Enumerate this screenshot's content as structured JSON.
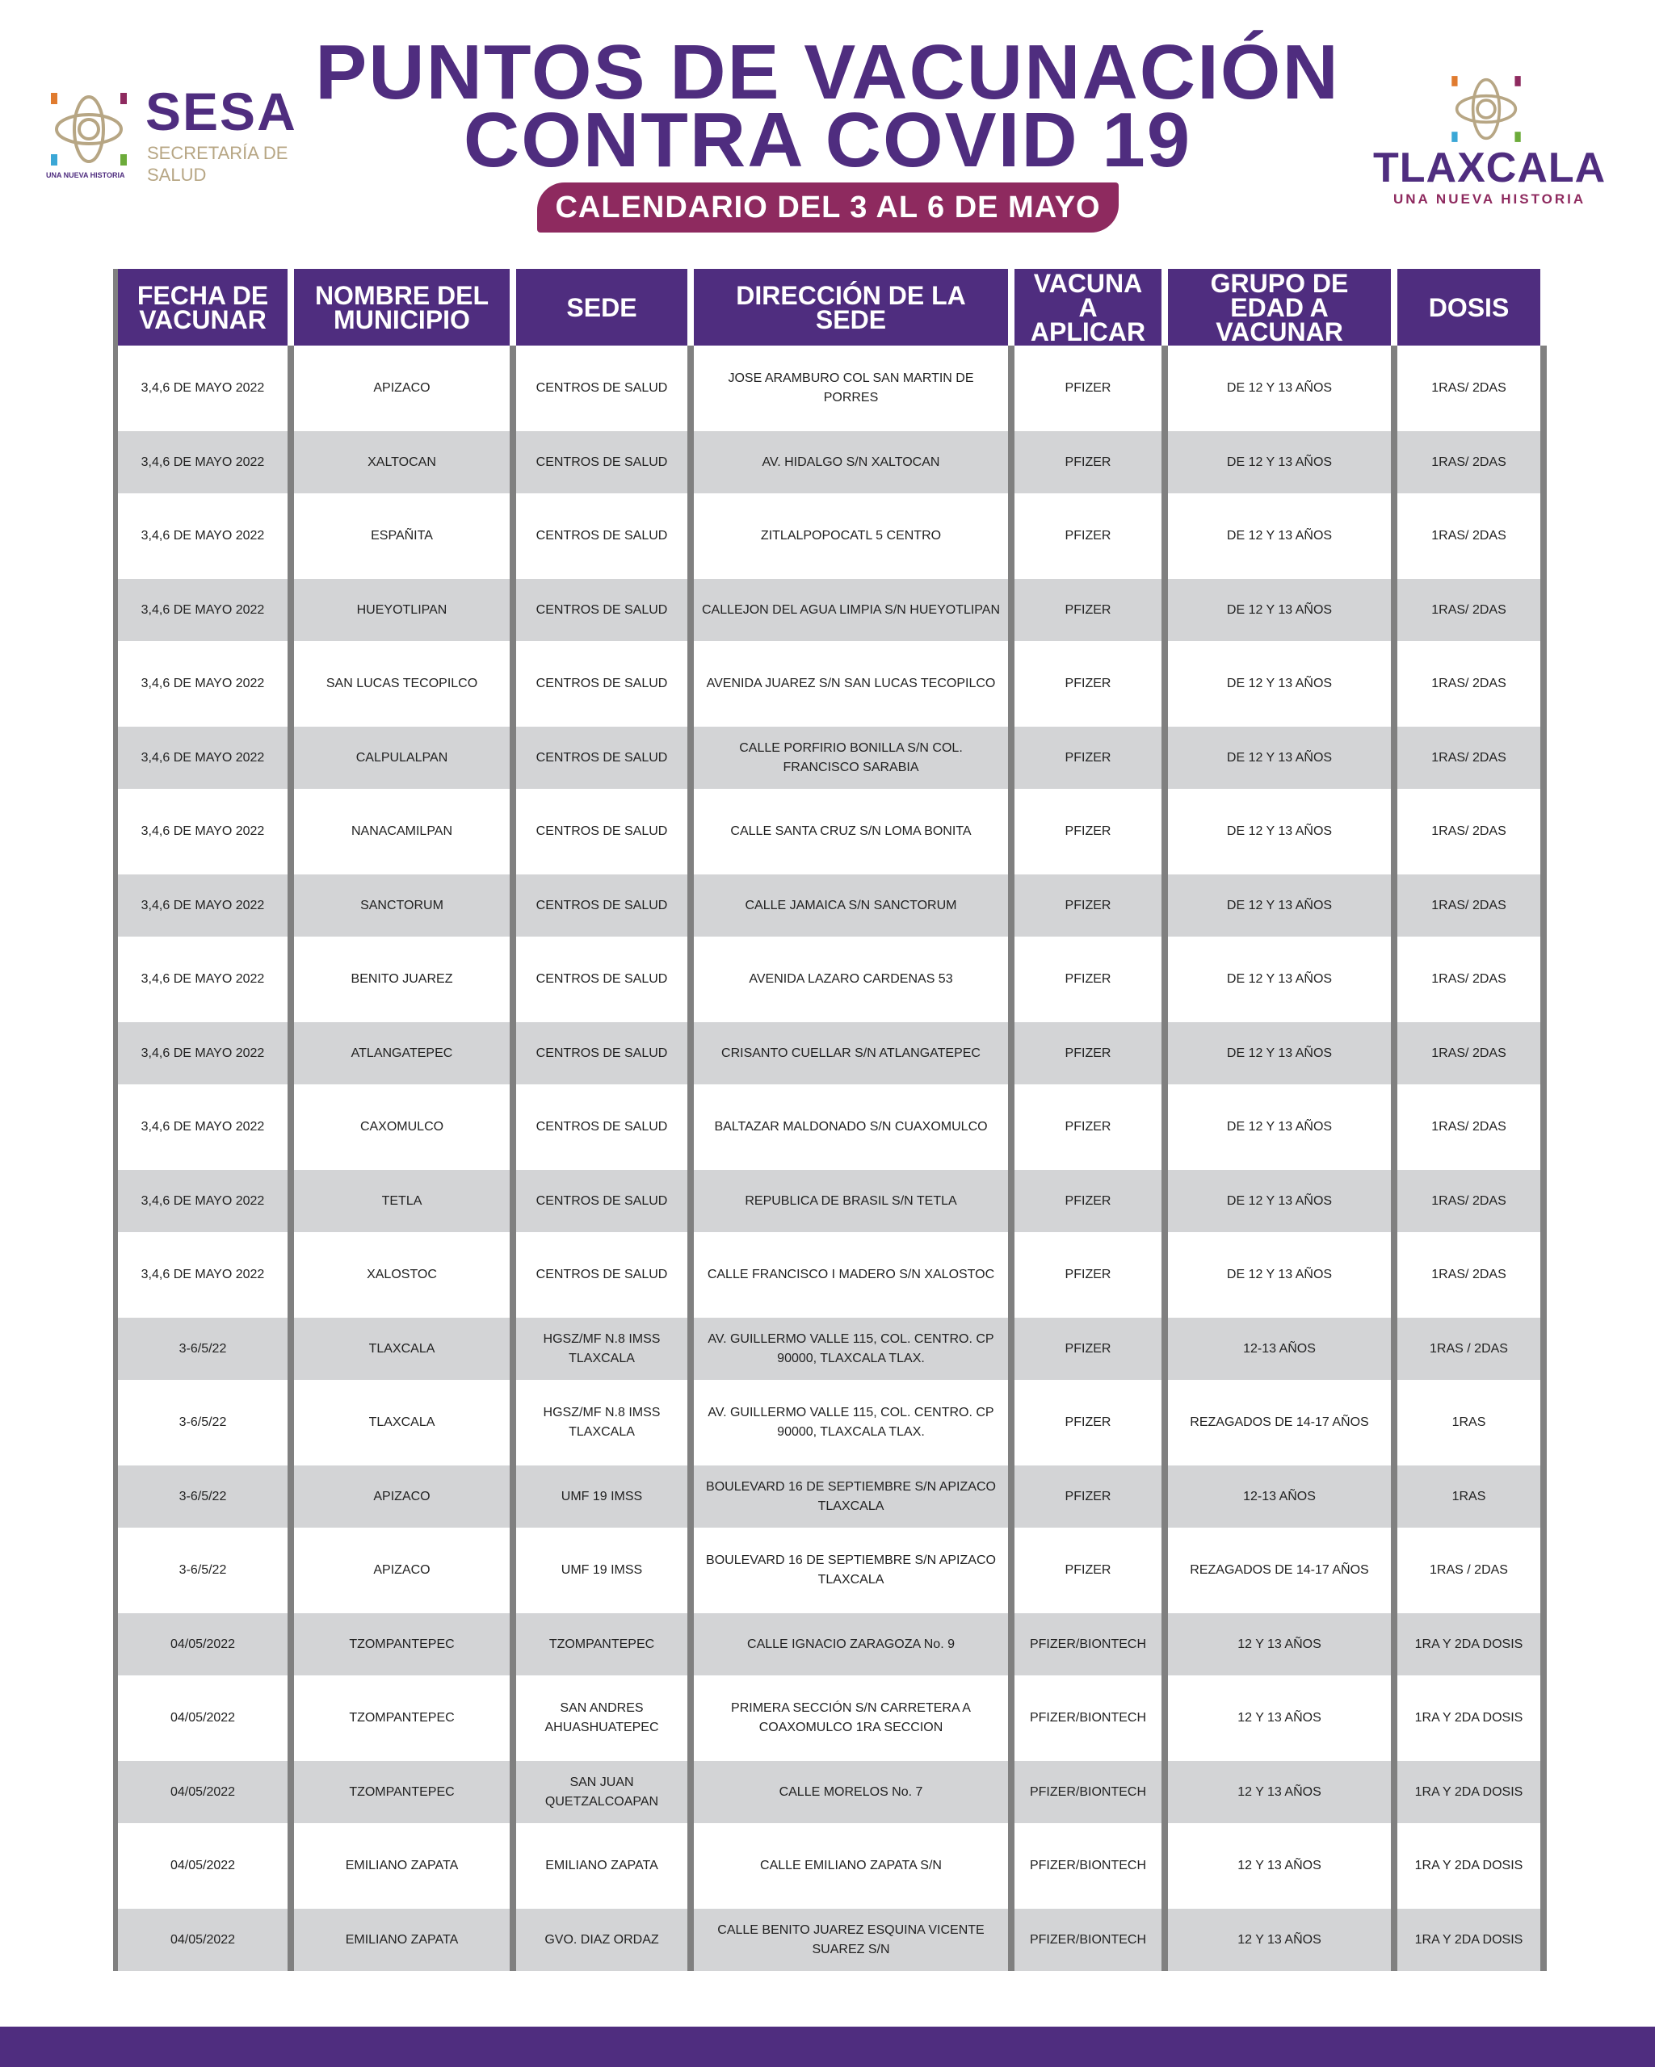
{
  "header": {
    "title_line1": "PUNTOS DE VACUNACIÓN",
    "title_line2": "CONTRA COVID 19",
    "subtitle": "CALENDARIO DEL 3 AL 6 DE MAYO"
  },
  "logo_left": {
    "name": "SESA",
    "sub1": "SECRETARÍA DE",
    "sub2": "SALUD",
    "tagline": "UNA NUEVA HISTORIA"
  },
  "logo_right": {
    "name": "TLAXCALA",
    "tagline": "UNA NUEVA HISTORIA"
  },
  "colors": {
    "purple": "#4f2d7f",
    "magenta": "#8e2a5f",
    "gray_row": "#d3d4d6",
    "gold": "#b7a684"
  },
  "table": {
    "columns": [
      "FECHA DE VACUNAR",
      "NOMBRE DEL MUNICIPIO",
      "SEDE",
      "DIRECCIÓN DE LA SEDE",
      "VACUNA A APLICAR",
      "GRUPO DE EDAD A VACUNAR",
      "DOSIS"
    ],
    "rows": [
      [
        "3,4,6 DE MAYO 2022",
        "APIZACO",
        "CENTROS DE SALUD",
        "JOSE ARAMBURO COL SAN MARTIN DE PORRES",
        "PFIZER",
        "DE 12 Y 13 AÑOS",
        "1RAS/ 2DAS"
      ],
      [
        "3,4,6 DE MAYO 2022",
        "XALTOCAN",
        "CENTROS DE SALUD",
        "AV. HIDALGO S/N XALTOCAN",
        "PFIZER",
        "DE 12 Y 13 AÑOS",
        "1RAS/ 2DAS"
      ],
      [
        "3,4,6 DE MAYO 2022",
        "ESPAÑITA",
        "CENTROS DE SALUD",
        "ZITLALPOPOCATL 5 CENTRO",
        "PFIZER",
        "DE 12 Y 13 AÑOS",
        "1RAS/ 2DAS"
      ],
      [
        "3,4,6 DE MAYO 2022",
        "HUEYOTLIPAN",
        "CENTROS DE SALUD",
        "CALLEJON DEL AGUA LIMPIA S/N HUEYOTLIPAN",
        "PFIZER",
        "DE 12 Y 13 AÑOS",
        "1RAS/ 2DAS"
      ],
      [
        "3,4,6 DE MAYO 2022",
        "SAN LUCAS TECOPILCO",
        "CENTROS DE SALUD",
        "AVENIDA JUAREZ S/N SAN LUCAS TECOPILCO",
        "PFIZER",
        "DE 12 Y 13 AÑOS",
        "1RAS/ 2DAS"
      ],
      [
        "3,4,6 DE MAYO 2022",
        "CALPULALPAN",
        "CENTROS DE SALUD",
        "CALLE PORFIRIO BONILLA S/N COL. FRANCISCO SARABIA",
        "PFIZER",
        "DE 12 Y 13 AÑOS",
        "1RAS/ 2DAS"
      ],
      [
        "3,4,6 DE MAYO 2022",
        "NANACAMILPAN",
        "CENTROS DE SALUD",
        "CALLE SANTA CRUZ S/N LOMA BONITA",
        "PFIZER",
        "DE 12 Y 13 AÑOS",
        "1RAS/ 2DAS"
      ],
      [
        "3,4,6 DE MAYO 2022",
        "SANCTORUM",
        "CENTROS DE SALUD",
        "CALLE JAMAICA  S/N SANCTORUM",
        "PFIZER",
        "DE 12 Y 13 AÑOS",
        "1RAS/ 2DAS"
      ],
      [
        "3,4,6 DE MAYO 2022",
        "BENITO JUAREZ",
        "CENTROS DE SALUD",
        "AVENIDA  LAZARO CARDENAS 53",
        "PFIZER",
        "DE 12 Y 13 AÑOS",
        "1RAS/ 2DAS"
      ],
      [
        "3,4,6 DE MAYO 2022",
        "ATLANGATEPEC",
        "CENTROS DE SALUD",
        "CRISANTO CUELLAR S/N ATLANGATEPEC",
        "PFIZER",
        "DE 12 Y 13 AÑOS",
        "1RAS/ 2DAS"
      ],
      [
        "3,4,6 DE MAYO 2022",
        "CAXOMULCO",
        "CENTROS DE SALUD",
        "BALTAZAR MALDONADO S/N CUAXOMULCO",
        "PFIZER",
        "DE 12 Y 13 AÑOS",
        "1RAS/ 2DAS"
      ],
      [
        "3,4,6 DE MAYO 2022",
        "TETLA",
        "CENTROS DE SALUD",
        "REPUBLICA DE BRASIL S/N TETLA",
        "PFIZER",
        "DE 12 Y 13 AÑOS",
        "1RAS/ 2DAS"
      ],
      [
        "3,4,6 DE MAYO 2022",
        "XALOSTOC",
        "CENTROS DE SALUD",
        "CALLE FRANCISCO I MADERO S/N XALOSTOC",
        "PFIZER",
        "DE 12 Y 13 AÑOS",
        "1RAS/ 2DAS"
      ],
      [
        "3-6/5/22",
        "TLAXCALA",
        "HGSZ/MF N.8 IMSS TLAXCALA",
        "AV. GUILLERMO VALLE 115, COL. CENTRO. CP 90000, TLAXCALA TLAX.",
        "PFIZER",
        "12-13 AÑOS",
        "1RAS / 2DAS"
      ],
      [
        "3-6/5/22",
        "TLAXCALA",
        "HGSZ/MF N.8 IMSS TLAXCALA",
        "AV. GUILLERMO VALLE 115, COL. CENTRO. CP 90000, TLAXCALA TLAX.",
        "PFIZER",
        "REZAGADOS DE 14-17 AÑOS",
        "1RAS"
      ],
      [
        "3-6/5/22",
        "APIZACO",
        "UMF 19 IMSS",
        "BOULEVARD 16 DE SEPTIEMBRE S/N APIZACO TLAXCALA",
        "PFIZER",
        "12-13 AÑOS",
        "1RAS"
      ],
      [
        "3-6/5/22",
        "APIZACO",
        "UMF 19 IMSS",
        "BOULEVARD 16 DE SEPTIEMBRE S/N APIZACO TLAXCALA",
        "PFIZER",
        "REZAGADOS DE 14-17 AÑOS",
        "1RAS / 2DAS"
      ],
      [
        "04/05/2022",
        "TZOMPANTEPEC",
        "TZOMPANTEPEC",
        "CALLE IGNACIO ZARAGOZA No. 9",
        "PFIZER/BIONTECH",
        "12 Y 13 AÑOS",
        "1RA Y 2DA DOSIS"
      ],
      [
        "04/05/2022",
        "TZOMPANTEPEC",
        "SAN ANDRES AHUASHUATEPEC",
        "PRIMERA SECCIÓN S/N CARRETERA A COAXOMULCO 1RA SECCION",
        "PFIZER/BIONTECH",
        "12 Y 13 AÑOS",
        "1RA Y 2DA DOSIS"
      ],
      [
        "04/05/2022",
        "TZOMPANTEPEC",
        "SAN JUAN QUETZALCOAPAN",
        "CALLE MORELOS No. 7",
        "PFIZER/BIONTECH",
        "12 Y 13 AÑOS",
        "1RA Y 2DA DOSIS"
      ],
      [
        "04/05/2022",
        "EMILIANO ZAPATA",
        "EMILIANO ZAPATA",
        "CALLE EMILIANO ZAPATA S/N",
        "PFIZER/BIONTECH",
        "12 Y 13 AÑOS",
        "1RA Y 2DA DOSIS"
      ],
      [
        "04/05/2022",
        "EMILIANO ZAPATA",
        "GVO. DIAZ ORDAZ",
        "CALLE BENITO JUAREZ ESQUINA VICENTE SUAREZ S/N",
        "PFIZER/BIONTECH",
        "12 Y 13 AÑOS",
        "1RA Y 2DA DOSIS"
      ]
    ]
  }
}
